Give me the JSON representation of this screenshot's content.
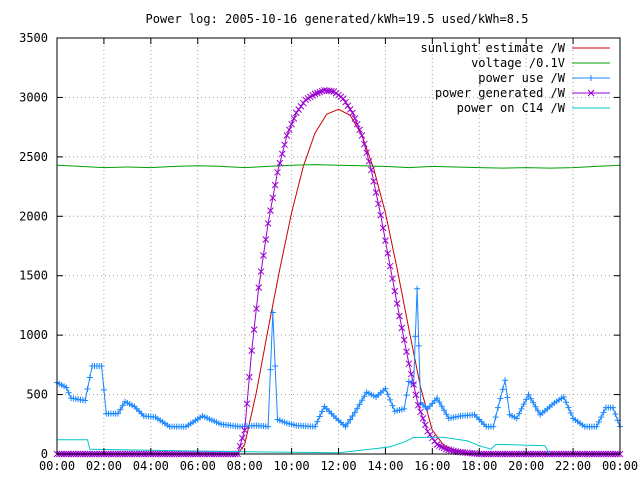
{
  "chart_data": {
    "type": "line",
    "title": "Power log: 2005-10-16 generated/kWh=19.5 used/kWh=8.5",
    "xlabel": "",
    "ylabel": "",
    "xlim": [
      0,
      24
    ],
    "ylim": [
      0,
      3500
    ],
    "grid": true,
    "legend_position": "top-right",
    "y_ticks": [
      0,
      500,
      1000,
      1500,
      2000,
      2500,
      3000,
      3500
    ],
    "x_ticks": [
      {
        "v": 0,
        "label": "00:00"
      },
      {
        "v": 2,
        "label": "02:00"
      },
      {
        "v": 4,
        "label": "04:00"
      },
      {
        "v": 6,
        "label": "06:00"
      },
      {
        "v": 8,
        "label": "08:00"
      },
      {
        "v": 10,
        "label": "10:00"
      },
      {
        "v": 12,
        "label": "12:00"
      },
      {
        "v": 14,
        "label": "14:00"
      },
      {
        "v": 16,
        "label": "16:00"
      },
      {
        "v": 18,
        "label": "18:00"
      },
      {
        "v": 20,
        "label": "20:00"
      },
      {
        "v": 22,
        "label": "22:00"
      },
      {
        "v": 24,
        "label": "00:00"
      }
    ],
    "series": [
      {
        "name": "sunlight estimate /W",
        "color": "#cc0000",
        "marker": "none",
        "points": [
          [
            0,
            0
          ],
          [
            7.7,
            0
          ],
          [
            8,
            80
          ],
          [
            8.5,
            520
          ],
          [
            9,
            1050
          ],
          [
            9.5,
            1560
          ],
          [
            10,
            2030
          ],
          [
            10.5,
            2420
          ],
          [
            11,
            2700
          ],
          [
            11.5,
            2860
          ],
          [
            12,
            2900
          ],
          [
            12.5,
            2850
          ],
          [
            13,
            2680
          ],
          [
            13.5,
            2400
          ],
          [
            14,
            2030
          ],
          [
            14.5,
            1560
          ],
          [
            15,
            1050
          ],
          [
            15.5,
            560
          ],
          [
            16,
            200
          ],
          [
            16.5,
            70
          ],
          [
            17,
            30
          ],
          [
            17.5,
            10
          ],
          [
            18,
            0
          ],
          [
            24,
            0
          ]
        ]
      },
      {
        "name": "voltage /0.1V",
        "color": "#00a000",
        "marker": "none",
        "points": [
          [
            0,
            2430
          ],
          [
            1,
            2420
          ],
          [
            2,
            2410
          ],
          [
            3,
            2415
          ],
          [
            4,
            2410
          ],
          [
            5,
            2420
          ],
          [
            6,
            2425
          ],
          [
            7,
            2420
          ],
          [
            8,
            2410
          ],
          [
            9,
            2420
          ],
          [
            10,
            2430
          ],
          [
            11,
            2435
          ],
          [
            12,
            2430
          ],
          [
            13,
            2425
          ],
          [
            14,
            2420
          ],
          [
            15,
            2410
          ],
          [
            16,
            2420
          ],
          [
            17,
            2415
          ],
          [
            18,
            2410
          ],
          [
            19,
            2405
          ],
          [
            20,
            2410
          ],
          [
            21,
            2405
          ],
          [
            22,
            2410
          ],
          [
            23,
            2420
          ],
          [
            24,
            2430
          ]
        ]
      },
      {
        "name": "power use /W",
        "color": "#1a86ff",
        "marker": "plus",
        "points": [
          [
            0,
            600
          ],
          [
            0.4,
            560
          ],
          [
            0.6,
            470
          ],
          [
            1.2,
            450
          ],
          [
            1.5,
            740
          ],
          [
            1.9,
            740
          ],
          [
            2.1,
            340
          ],
          [
            2.6,
            340
          ],
          [
            2.9,
            440
          ],
          [
            3.3,
            400
          ],
          [
            3.7,
            320
          ],
          [
            4.2,
            310
          ],
          [
            4.8,
            230
          ],
          [
            5.5,
            230
          ],
          [
            6.2,
            320
          ],
          [
            7,
            250
          ],
          [
            7.8,
            230
          ],
          [
            8.5,
            240
          ],
          [
            9,
            230
          ],
          [
            9.2,
            1190
          ],
          [
            9.4,
            290
          ],
          [
            9.8,
            260
          ],
          [
            10.2,
            240
          ],
          [
            11,
            230
          ],
          [
            11.4,
            400
          ],
          [
            11.9,
            300
          ],
          [
            12.3,
            230
          ],
          [
            12.7,
            350
          ],
          [
            13.2,
            520
          ],
          [
            13.6,
            480
          ],
          [
            14,
            550
          ],
          [
            14.4,
            360
          ],
          [
            14.8,
            380
          ],
          [
            15,
            610
          ],
          [
            15.2,
            590
          ],
          [
            15.35,
            1390
          ],
          [
            15.5,
            430
          ],
          [
            15.8,
            380
          ],
          [
            16.2,
            470
          ],
          [
            16.7,
            300
          ],
          [
            17.2,
            320
          ],
          [
            17.8,
            330
          ],
          [
            18.3,
            230
          ],
          [
            18.6,
            230
          ],
          [
            18.8,
            390
          ],
          [
            19.1,
            620
          ],
          [
            19.3,
            330
          ],
          [
            19.6,
            300
          ],
          [
            20.1,
            500
          ],
          [
            20.6,
            330
          ],
          [
            21.2,
            430
          ],
          [
            21.6,
            480
          ],
          [
            22,
            300
          ],
          [
            22.5,
            230
          ],
          [
            23,
            230
          ],
          [
            23.4,
            390
          ],
          [
            23.7,
            390
          ],
          [
            24,
            230
          ]
        ]
      },
      {
        "name": "power generated /W",
        "color": "#9a00d0",
        "marker": "cross",
        "points": [
          [
            0,
            0
          ],
          [
            7.7,
            0
          ],
          [
            8,
            200
          ],
          [
            8.3,
            870
          ],
          [
            8.6,
            1400
          ],
          [
            9,
            1940
          ],
          [
            9.4,
            2370
          ],
          [
            9.8,
            2680
          ],
          [
            10.2,
            2870
          ],
          [
            10.6,
            2980
          ],
          [
            11,
            3030
          ],
          [
            11.4,
            3060
          ],
          [
            11.8,
            3050
          ],
          [
            12.2,
            2990
          ],
          [
            12.6,
            2870
          ],
          [
            13,
            2680
          ],
          [
            13.4,
            2390
          ],
          [
            13.8,
            2010
          ],
          [
            14.2,
            1580
          ],
          [
            14.6,
            1160
          ],
          [
            15,
            760
          ],
          [
            15.4,
            410
          ],
          [
            15.8,
            190
          ],
          [
            16.2,
            80
          ],
          [
            16.6,
            40
          ],
          [
            17,
            20
          ],
          [
            17.5,
            10
          ],
          [
            18,
            0
          ],
          [
            24,
            0
          ]
        ]
      },
      {
        "name": "power on C14 /W",
        "color": "#00c8c8",
        "marker": "none",
        "points": [
          [
            0,
            120
          ],
          [
            1.3,
            120
          ],
          [
            1.4,
            40
          ],
          [
            7.5,
            20
          ],
          [
            12,
            10
          ],
          [
            14.2,
            60
          ],
          [
            14.8,
            100
          ],
          [
            15.2,
            140
          ],
          [
            16.5,
            140
          ],
          [
            17.5,
            110
          ],
          [
            18,
            70
          ],
          [
            18.5,
            40
          ],
          [
            18.7,
            80
          ],
          [
            19,
            80
          ],
          [
            20.8,
            70
          ],
          [
            21,
            0
          ],
          [
            24,
            0
          ]
        ]
      }
    ]
  }
}
